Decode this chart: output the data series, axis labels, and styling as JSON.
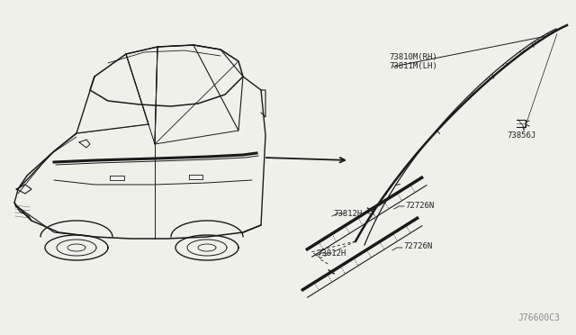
{
  "bg_color": "#f0f0eb",
  "line_color": "#1a1a1a",
  "text_color": "#222222",
  "gray_text": "#888888",
  "title_code": "J76600C3",
  "labels": {
    "part1a": "73810M(RH)",
    "part1b": "73811M(LH)",
    "part2": "73856J",
    "part3a": "73812H",
    "part3b": "72726N",
    "part4a": "73812H",
    "part4b": "72726N"
  },
  "font_size": 6.5,
  "font_code": 7.0
}
